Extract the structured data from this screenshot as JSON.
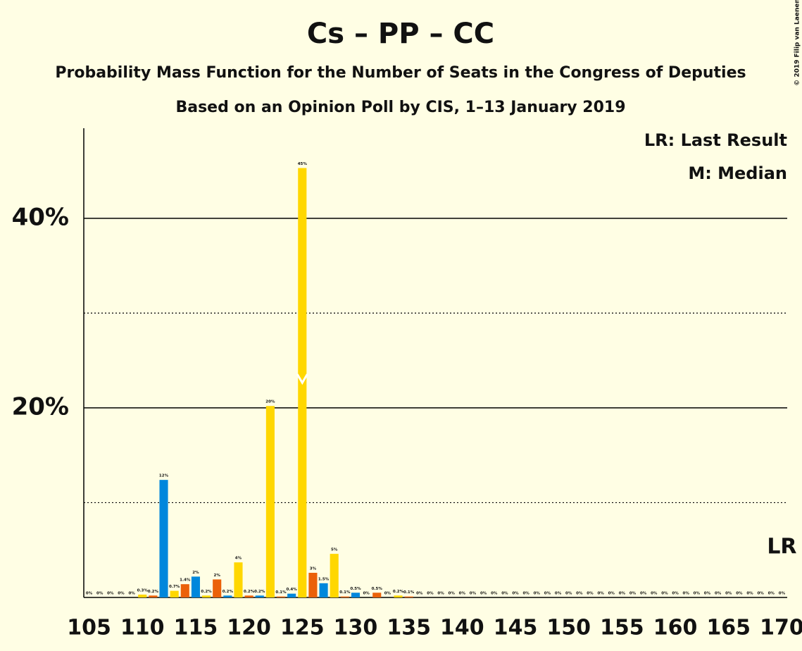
{
  "chart_data": {
    "type": "bar",
    "title": "Cs – PP – CC",
    "subtitle": "Probability Mass Function for the Number of Seats in the Congress of Deputies",
    "subtitle2": "Based on an Opinion Poll by CIS, 1–13 January 2019",
    "legend_lr": "LR: Last Result",
    "legend_median": "M: Median",
    "copyright": "© 2019 Filip van Laenen",
    "x": [
      105,
      106,
      107,
      108,
      109,
      110,
      111,
      112,
      113,
      114,
      115,
      116,
      117,
      118,
      119,
      120,
      121,
      122,
      123,
      124,
      125,
      126,
      127,
      128,
      129,
      130,
      131,
      132,
      133,
      134,
      135,
      136,
      137,
      138,
      139,
      140,
      141,
      142,
      143,
      144,
      145,
      146,
      147,
      148,
      149,
      150,
      151,
      152,
      153,
      154,
      155,
      156,
      157,
      158,
      159,
      160,
      161,
      162,
      163,
      164,
      165,
      166,
      167,
      168,
      169,
      170
    ],
    "values": [
      0,
      0,
      0,
      0,
      0,
      0.3,
      0.2,
      12.4,
      0.7,
      1.4,
      2.2,
      0.2,
      1.9,
      0.2,
      3.7,
      0.2,
      0.2,
      20.2,
      0.1,
      0.4,
      45.3,
      2.6,
      1.5,
      4.6,
      0.1,
      0.5,
      0,
      0.5,
      0,
      0.2,
      0.1,
      0,
      0,
      0,
      0,
      0,
      0,
      0,
      0,
      0,
      0,
      0,
      0,
      0,
      0,
      0,
      0,
      0,
      0,
      0,
      0,
      0,
      0,
      0,
      0,
      0,
      0,
      0,
      0,
      0,
      0,
      0,
      0,
      0,
      0,
      0
    ],
    "value_labels": [
      "0%",
      "0%",
      "0%",
      "0%",
      "0%",
      "0.3%",
      "0.2%",
      "12%",
      "0.7%",
      "1.4%",
      "2%",
      "0.2%",
      "2%",
      "0.2%",
      "4%",
      "0.2%",
      "0.2%",
      "20%",
      "0.1%",
      "0.4%",
      "45%",
      "3%",
      "1.5%",
      "5%",
      "0.1%",
      "0.5%",
      "0%",
      "0.5%",
      "0%",
      "0.2%",
      "0.1%",
      "0%",
      "0%",
      "0%",
      "0%",
      "0%",
      "0%",
      "0%",
      "0%",
      "0%",
      "0%",
      "0%",
      "0%",
      "0%",
      "0%",
      "0%",
      "0%",
      "0%",
      "0%",
      "0%",
      "0%",
      "0%",
      "0%",
      "0%",
      "0%",
      "0%",
      "0%",
      "0%",
      "0%",
      "0%",
      "0%",
      "0%",
      "0%",
      "0%",
      "0%",
      "0%"
    ],
    "colors": [
      "#eb6109",
      "#0087dc",
      "#ffd700"
    ],
    "xlim": [
      104.5,
      170.5
    ],
    "xticks": [
      105,
      110,
      115,
      120,
      125,
      130,
      135,
      140,
      145,
      150,
      155,
      160,
      165,
      170
    ],
    "ylim": [
      0,
      49.5
    ],
    "yticks": [
      {
        "value": 20,
        "label": "20%"
      },
      {
        "value": 40,
        "label": "40%"
      }
    ],
    "minor_yticks": [
      10,
      30
    ],
    "median": 125,
    "last_result": 170,
    "last_result_label": "LR"
  }
}
